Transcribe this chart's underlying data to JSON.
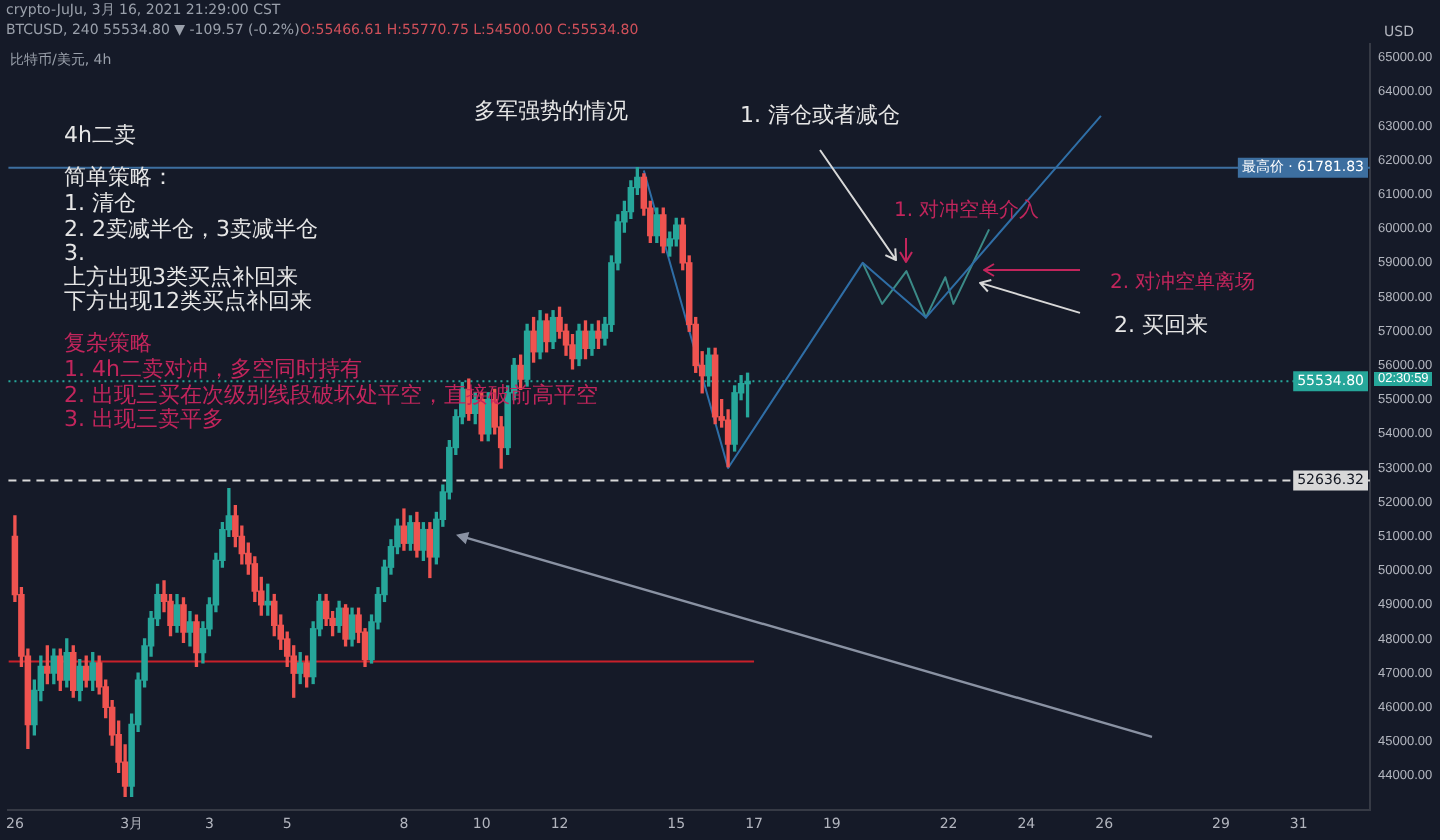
{
  "chart_data": {
    "type": "candlestick",
    "ylabel": "USD",
    "x": [
      "2021-02-26T00:00",
      "2021-02-26T04:00",
      "2021-02-26T08:00",
      "2021-02-26T12:00",
      "2021-02-26T16:00",
      "2021-02-26T20:00",
      "2021-02-27T00:00",
      "2021-02-27T04:00",
      "2021-02-27T08:00",
      "2021-02-27T12:00",
      "2021-02-27T16:00",
      "2021-02-27T20:00",
      "2021-02-28T00:00",
      "2021-02-28T04:00",
      "2021-02-28T08:00",
      "2021-02-28T12:00",
      "2021-02-28T16:00",
      "2021-02-28T20:00",
      "2021-03-01T00:00",
      "2021-03-01T04:00",
      "2021-03-01T08:00",
      "2021-03-01T12:00",
      "2021-03-01T16:00",
      "2021-03-01T20:00",
      "2021-03-02T00:00",
      "2021-03-02T04:00",
      "2021-03-02T08:00",
      "2021-03-02T12:00",
      "2021-03-02T16:00",
      "2021-03-02T20:00",
      "2021-03-03T00:00",
      "2021-03-03T04:00",
      "2021-03-03T08:00",
      "2021-03-03T12:00",
      "2021-03-03T16:00",
      "2021-03-03T20:00",
      "2021-03-04T00:00",
      "2021-03-04T04:00",
      "2021-03-04T08:00",
      "2021-03-04T12:00",
      "2021-03-04T16:00",
      "2021-03-04T20:00",
      "2021-03-05T00:00",
      "2021-03-05T04:00",
      "2021-03-05T08:00",
      "2021-03-05T12:00",
      "2021-03-05T16:00",
      "2021-03-05T20:00",
      "2021-03-06T00:00",
      "2021-03-06T04:00",
      "2021-03-06T08:00",
      "2021-03-06T12:00",
      "2021-03-06T16:00",
      "2021-03-06T20:00",
      "2021-03-07T00:00",
      "2021-03-07T04:00",
      "2021-03-07T08:00",
      "2021-03-07T12:00",
      "2021-03-07T16:00",
      "2021-03-07T20:00",
      "2021-03-08T00:00",
      "2021-03-08T04:00",
      "2021-03-08T08:00",
      "2021-03-08T12:00",
      "2021-03-08T16:00",
      "2021-03-08T20:00",
      "2021-03-09T00:00",
      "2021-03-09T04:00",
      "2021-03-09T08:00",
      "2021-03-09T12:00",
      "2021-03-09T16:00",
      "2021-03-09T20:00",
      "2021-03-10T00:00",
      "2021-03-10T04:00",
      "2021-03-10T08:00",
      "2021-03-10T12:00",
      "2021-03-10T16:00",
      "2021-03-10T20:00",
      "2021-03-11T00:00",
      "2021-03-11T04:00",
      "2021-03-11T08:00",
      "2021-03-11T12:00",
      "2021-03-11T16:00",
      "2021-03-11T20:00",
      "2021-03-12T00:00",
      "2021-03-12T04:00",
      "2021-03-12T08:00",
      "2021-03-12T12:00",
      "2021-03-12T16:00",
      "2021-03-12T20:00",
      "2021-03-13T00:00",
      "2021-03-13T04:00",
      "2021-03-13T08:00",
      "2021-03-13T12:00",
      "2021-03-13T16:00",
      "2021-03-13T20:00",
      "2021-03-14T00:00",
      "2021-03-14T04:00",
      "2021-03-14T08:00",
      "2021-03-14T12:00",
      "2021-03-14T16:00",
      "2021-03-14T20:00",
      "2021-03-15T00:00",
      "2021-03-15T04:00",
      "2021-03-15T08:00",
      "2021-03-15T12:00",
      "2021-03-15T16:00",
      "2021-03-15T20:00",
      "2021-03-16T00:00",
      "2021-03-16T04:00",
      "2021-03-16T08:00",
      "2021-03-16T12:00",
      "2021-03-16T16:00",
      "2021-03-16T20:00"
    ],
    "ohlc": [
      [
        51000,
        51600,
        49100,
        49300
      ],
      [
        49300,
        49500,
        47200,
        47500
      ],
      [
        47500,
        47700,
        44800,
        45500
      ],
      [
        45500,
        46800,
        45200,
        46500
      ],
      [
        46500,
        47500,
        46200,
        47200
      ],
      [
        47200,
        47800,
        46700,
        47000
      ],
      [
        47000,
        47700,
        46700,
        47500
      ],
      [
        47500,
        47700,
        46500,
        46800
      ],
      [
        46800,
        48000,
        46600,
        47600
      ],
      [
        47600,
        47800,
        46300,
        46500
      ],
      [
        46500,
        47400,
        46200,
        47200
      ],
      [
        47200,
        47500,
        46600,
        46800
      ],
      [
        46800,
        47600,
        46500,
        47300
      ],
      [
        47300,
        47500,
        46400,
        46600
      ],
      [
        46600,
        46800,
        45700,
        46000
      ],
      [
        46000,
        46200,
        44900,
        45200
      ],
      [
        45200,
        45600,
        44100,
        44400
      ],
      [
        44400,
        44900,
        43400,
        43700
      ],
      [
        43700,
        45800,
        43400,
        45500
      ],
      [
        45500,
        47000,
        45300,
        46800
      ],
      [
        46800,
        48000,
        46600,
        47800
      ],
      [
        47800,
        48800,
        47500,
        48600
      ],
      [
        48600,
        49600,
        48400,
        49300
      ],
      [
        49300,
        49700,
        48800,
        49100
      ],
      [
        49100,
        49300,
        48100,
        48400
      ],
      [
        48400,
        49300,
        48200,
        49000
      ],
      [
        49000,
        49200,
        47900,
        48200
      ],
      [
        48200,
        48800,
        47800,
        48500
      ],
      [
        48500,
        48700,
        47200,
        47600
      ],
      [
        47600,
        48500,
        47300,
        48300
      ],
      [
        48300,
        49200,
        48100,
        49000
      ],
      [
        49000,
        50500,
        48800,
        50300
      ],
      [
        50300,
        51400,
        50100,
        51200
      ],
      [
        51200,
        52400,
        51000,
        51600
      ],
      [
        51600,
        51900,
        50700,
        51000
      ],
      [
        51000,
        51300,
        50200,
        50500
      ],
      [
        50500,
        50800,
        49900,
        50200
      ],
      [
        50200,
        50400,
        49100,
        49400
      ],
      [
        49400,
        49800,
        48700,
        49000
      ],
      [
        49000,
        49600,
        48700,
        49100
      ],
      [
        49100,
        49300,
        48100,
        48400
      ],
      [
        48400,
        48700,
        47700,
        48000
      ],
      [
        48000,
        48200,
        47200,
        47500
      ],
      [
        47500,
        47800,
        46300,
        47000
      ],
      [
        47000,
        47600,
        46700,
        47300
      ],
      [
        47300,
        47500,
        46600,
        46900
      ],
      [
        46900,
        48500,
        46700,
        48300
      ],
      [
        48300,
        49300,
        48100,
        49100
      ],
      [
        49100,
        49300,
        48400,
        48600
      ],
      [
        48600,
        48800,
        48100,
        48400
      ],
      [
        48400,
        49100,
        48200,
        48900
      ],
      [
        48900,
        49000,
        47800,
        48000
      ],
      [
        48000,
        48900,
        47800,
        48700
      ],
      [
        48700,
        48900,
        47900,
        48200
      ],
      [
        48200,
        48300,
        47200,
        47400
      ],
      [
        47400,
        48700,
        47300,
        48500
      ],
      [
        48500,
        49500,
        48300,
        49300
      ],
      [
        49300,
        50300,
        49100,
        50100
      ],
      [
        50100,
        50900,
        49900,
        50700
      ],
      [
        50700,
        51500,
        50500,
        51300
      ],
      [
        51300,
        51800,
        50600,
        50800
      ],
      [
        50800,
        51600,
        50600,
        51400
      ],
      [
        51400,
        51700,
        50400,
        50600
      ],
      [
        50600,
        51400,
        50300,
        51200
      ],
      [
        51200,
        51400,
        49800,
        50400
      ],
      [
        50400,
        51700,
        50200,
        51500
      ],
      [
        51500,
        52500,
        51300,
        52300
      ],
      [
        52300,
        53800,
        52100,
        53600
      ],
      [
        53600,
        54700,
        53400,
        54500
      ],
      [
        54500,
        55500,
        54300,
        55300
      ],
      [
        55300,
        55600,
        54400,
        54600
      ],
      [
        54600,
        55200,
        54300,
        55000
      ],
      [
        55000,
        55200,
        53800,
        54000
      ],
      [
        54000,
        55200,
        53800,
        55000
      ],
      [
        55000,
        55300,
        54000,
        54200
      ],
      [
        54200,
        54500,
        53000,
        53600
      ],
      [
        53600,
        55400,
        53400,
        55200
      ],
      [
        55200,
        56200,
        55000,
        56000
      ],
      [
        56000,
        56300,
        55300,
        55600
      ],
      [
        55600,
        57200,
        55400,
        57000
      ],
      [
        57000,
        57400,
        56100,
        56400
      ],
      [
        56400,
        57600,
        56200,
        57300
      ],
      [
        57300,
        57500,
        56400,
        56700
      ],
      [
        56700,
        57600,
        56500,
        57400
      ],
      [
        57400,
        57700,
        56800,
        57000
      ],
      [
        57000,
        57200,
        56300,
        56600
      ],
      [
        56600,
        56900,
        55900,
        56200
      ],
      [
        56200,
        57200,
        56000,
        57000
      ],
      [
        57000,
        57300,
        56200,
        56500
      ],
      [
        56500,
        57200,
        56300,
        57000
      ],
      [
        57000,
        57300,
        56500,
        56800
      ],
      [
        56800,
        57400,
        56600,
        57200
      ],
      [
        57200,
        59200,
        57000,
        59000
      ],
      [
        59000,
        60400,
        58800,
        60200
      ],
      [
        60200,
        60800,
        59900,
        60500
      ],
      [
        60500,
        61400,
        60300,
        61200
      ],
      [
        61200,
        61781.83,
        61000,
        61500
      ],
      [
        61500,
        61600,
        60400,
        60600
      ],
      [
        60600,
        60800,
        59600,
        59800
      ],
      [
        59800,
        60600,
        59600,
        60400
      ],
      [
        60400,
        60600,
        59300,
        59500
      ],
      [
        59500,
        59900,
        59200,
        59700
      ],
      [
        59700,
        60300,
        59500,
        60100
      ],
      [
        60100,
        60300,
        58800,
        59000
      ],
      [
        59000,
        59200,
        57000,
        57200
      ],
      [
        57200,
        57400,
        55800,
        56000
      ],
      [
        56000,
        56400,
        55200,
        55700
      ],
      [
        55700,
        56500,
        55400,
        56300
      ],
      [
        56300,
        56500,
        54300,
        54500
      ],
      [
        54500,
        55000,
        54200,
        54400
      ],
      [
        54400,
        54700,
        53040,
        53700
      ],
      [
        53700,
        55400,
        53500,
        55200
      ],
      [
        55200,
        55700,
        55000,
        55466.61
      ],
      [
        55466.61,
        55770.75,
        54500,
        55534.8
      ]
    ],
    "series": [
      {
        "type": "line",
        "color": "#2f6ea6",
        "x": [
          "2021-03-14T04:00",
          "2021-03-16T08:00",
          "2021-03-19T19:00",
          "2021-03-21T10:00",
          "2021-03-25T22:00"
        ],
        "values": [
          61700,
          53000,
          59000,
          57400,
          63300
        ]
      },
      {
        "type": "line",
        "color": "#3b8a87",
        "x": [
          "2021-03-19T19:00",
          "2021-03-20T07:00",
          "2021-03-20T22:00",
          "2021-03-21T10:00",
          "2021-03-21T22:00",
          "2021-03-22T03:00",
          "2021-03-23T01:00"
        ],
        "values": [
          59000,
          57800,
          58760,
          57400,
          58580,
          57800,
          59980
        ]
      },
      {
        "type": "line",
        "color": "#c8202a",
        "x": [
          "2021-02-25T20:00",
          "2021-03-17T00:00"
        ],
        "values": [
          47340,
          47340
        ]
      }
    ],
    "xlim": [
      "2021-02-25T20:00",
      "2021-04-01T20:00"
    ],
    "xticks": [
      {
        "value": "2021-02-26",
        "label": "26"
      },
      {
        "value": "2021-03-01",
        "label": "3月"
      },
      {
        "value": "2021-03-03",
        "label": "3"
      },
      {
        "value": "2021-03-05",
        "label": "5"
      },
      {
        "value": "2021-03-08",
        "label": "8"
      },
      {
        "value": "2021-03-10",
        "label": "10"
      },
      {
        "value": "2021-03-12",
        "label": "12"
      },
      {
        "value": "2021-03-15",
        "label": "15"
      },
      {
        "value": "2021-03-17",
        "label": "17"
      },
      {
        "value": "2021-03-19",
        "label": "19"
      },
      {
        "value": "2021-03-22",
        "label": "22"
      },
      {
        "value": "2021-03-24",
        "label": "24"
      },
      {
        "value": "2021-03-26",
        "label": "26"
      },
      {
        "value": "2021-03-29",
        "label": "29"
      },
      {
        "value": "2021-03-31",
        "label": "31"
      }
    ],
    "ylim": [
      43000,
      65400
    ],
    "yticks": [
      {
        "value": 44000,
        "label": "44000.00"
      },
      {
        "value": 45000,
        "label": "45000.00"
      },
      {
        "value": 46000,
        "label": "46000.00"
      },
      {
        "value": 47000,
        "label": "47000.00"
      },
      {
        "value": 48000,
        "label": "48000.00"
      },
      {
        "value": 49000,
        "label": "49000.00"
      },
      {
        "value": 50000,
        "label": "50000.00"
      },
      {
        "value": 51000,
        "label": "51000.00"
      },
      {
        "value": 52000,
        "label": "52000.00"
      },
      {
        "value": 53000,
        "label": "53000.00"
      },
      {
        "value": 54000,
        "label": "54000.00"
      },
      {
        "value": 55000,
        "label": "55000.00"
      },
      {
        "value": 56000,
        "label": "56000.00"
      },
      {
        "value": 57000,
        "label": "57000.00"
      },
      {
        "value": 58000,
        "label": "58000.00"
      },
      {
        "value": 59000,
        "label": "59000.00"
      },
      {
        "value": 60000,
        "label": "60000.00"
      },
      {
        "value": 61000,
        "label": "61000.00"
      },
      {
        "value": 62000,
        "label": "62000.00"
      },
      {
        "value": 63000,
        "label": "63000.00"
      },
      {
        "value": 64000,
        "label": "64000.00"
      },
      {
        "value": 65000,
        "label": "65000.00"
      }
    ],
    "ref_lines": [
      {
        "axis": "y",
        "value": 61781.83,
        "label": "最高价 · 61781.83",
        "color": "#3d6fa0",
        "line_style": "solid"
      },
      {
        "axis": "y",
        "value": 52636.32,
        "label": "52636.32",
        "color": "#d8d8d8",
        "line_style": "dashed"
      },
      {
        "axis": "y",
        "value": 55534.8,
        "label": "55534.80",
        "color": "#26a69a",
        "line_style": "dotted"
      }
    ],
    "grid": false,
    "legend": false,
    "annotations": [
      "crypto-JuJu, 3月 16, 2021 21:29:00 CST",
      "BTCUSD, 240 55534.80 ▼ -109.57 (-0.2%)",
      "O:55466.61 H:55770.75 L:54500.00 C:55534.80",
      "比特币/美元, 4h",
      "4h二卖",
      "简单策略：",
      "1. 清仓",
      "2. 2卖减半仓，3卖减半仓",
      "3.",
      "上方出现3类买点补回来",
      "下方出现12类买点补回来",
      "复杂策略",
      "1. 4h二卖对冲，多空同时持有",
      "2. 出现三买在次级别线段破坏处平空，直接破前高平空",
      "3. 出现三卖平多",
      "多军强势的情况",
      "1. 清仓或者减仓",
      "1. 对冲空单介入",
      "2. 对冲空单离场",
      "2. 买回来",
      "02:30:59"
    ]
  }
}
